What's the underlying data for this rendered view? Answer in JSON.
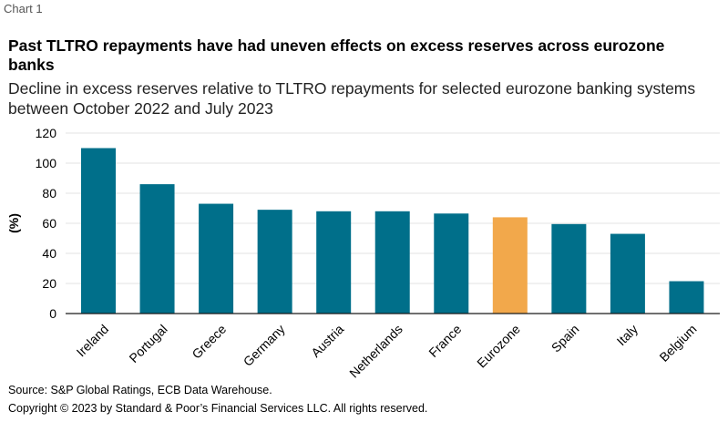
{
  "chart_label": "Chart 1",
  "chart_data": {
    "type": "bar",
    "title": "Past TLTRO repayments have had uneven effects on excess reserves across eurozone banks",
    "subtitle": "Decline in excess reserves relative to TLTRO repayments for selected eurozone banking systems between October 2022 and July 2023",
    "categories": [
      "Ireland",
      "Portugal",
      "Greece",
      "Germany",
      "Austria",
      "Netherlands",
      "France",
      "Eurozone",
      "Spain",
      "Italy",
      "Belgium"
    ],
    "values": [
      110,
      86,
      73,
      69,
      68,
      68,
      66.5,
      64,
      59.5,
      53,
      21.5
    ],
    "highlight": "Eurozone",
    "ylabel": "(%)",
    "xlabel": "",
    "ylim": [
      0,
      120
    ],
    "yticks": [
      0,
      20,
      40,
      60,
      80,
      100,
      120
    ],
    "colors": {
      "bar": "#006f8a",
      "highlight": "#f2a84b",
      "gridline": "#e3e3e3",
      "axis": "#1a1a1a"
    }
  },
  "footer": {
    "source": "Source: S&P Global Ratings, ECB Data Warehouse.",
    "copyright": "Copyright © 2023 by Standard & Poor’s Financial Services LLC. All rights reserved."
  }
}
